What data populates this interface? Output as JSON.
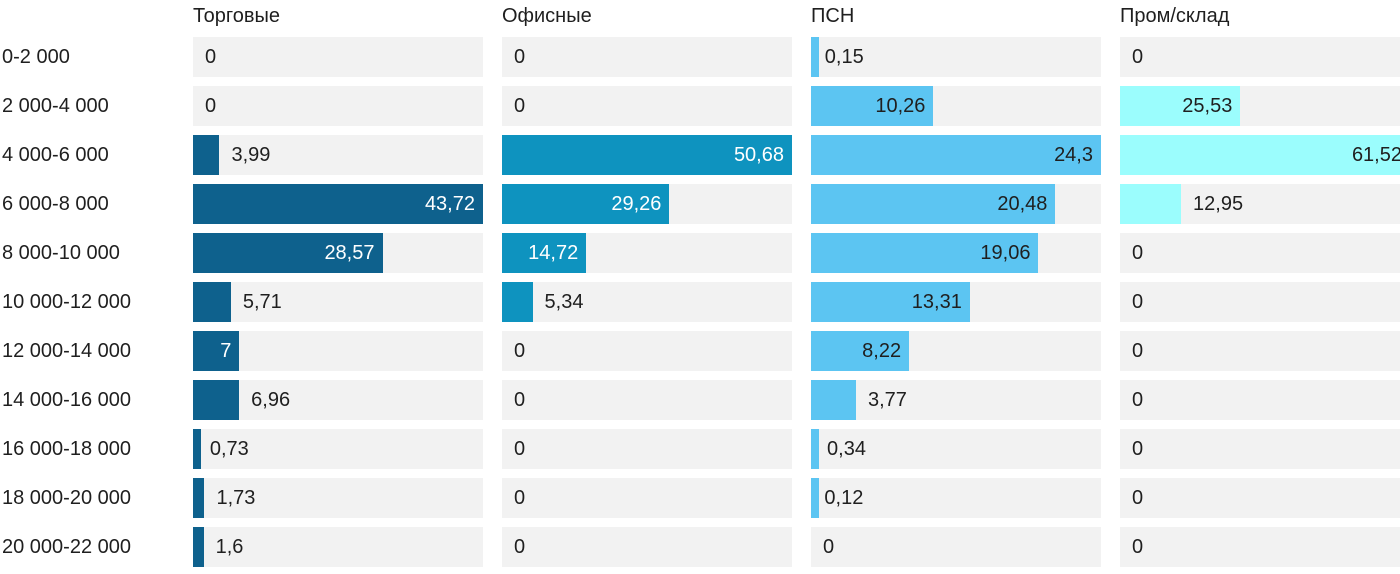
{
  "chart_data": {
    "type": "bar",
    "orientation": "horizontal",
    "title": "",
    "categories": [
      "0-2 000",
      "2 000-4 000",
      "4 000-6 000",
      "6 000-8 000",
      "8 000-10 000",
      "10 000-12 000",
      "12 000-14 000",
      "14 000-16 000",
      "16 000-18 000",
      "18 000-20 000",
      "20 000-22 000"
    ],
    "series": [
      {
        "name": "Торговые",
        "color": "#0e618d",
        "inside_label_color": "#ffffff",
        "axis_max": 43.72,
        "values": [
          0,
          0,
          3.99,
          43.72,
          28.57,
          5.71,
          7,
          6.96,
          0.73,
          1.73,
          1.6
        ]
      },
      {
        "name": "Офисные",
        "color": "#0e93bf",
        "inside_label_color": "#ffffff",
        "axis_max": 50.68,
        "values": [
          0,
          0,
          50.68,
          29.26,
          14.72,
          5.34,
          0,
          0,
          0,
          0,
          0
        ]
      },
      {
        "name": "ПСН",
        "color": "#5cc5f2",
        "inside_label_color": "#1f1f1f",
        "axis_max": 24.3,
        "values": [
          0.15,
          10.26,
          24.3,
          20.48,
          19.06,
          13.31,
          8.22,
          3.77,
          0.34,
          0.12,
          0
        ]
      },
      {
        "name": "Пром/склад",
        "color": "#9bfdfd",
        "inside_label_color": "#1f1f1f",
        "axis_max": 61.52,
        "values": [
          0,
          25.53,
          61.52,
          12.95,
          0,
          0,
          0,
          0,
          0,
          0,
          0
        ]
      }
    ],
    "decimal_separator": ",",
    "track_color": "#f2f2f2",
    "text_color": "#1f1f1f",
    "layout": {
      "grid": false,
      "legend": false,
      "independent_column_scales": true,
      "value_labels": "inside-right or outside-left-of-track"
    }
  }
}
